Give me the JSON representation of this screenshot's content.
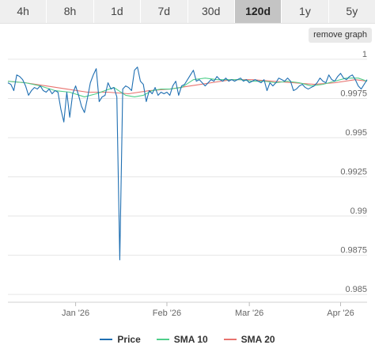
{
  "tabs": [
    {
      "label": "4h",
      "active": false
    },
    {
      "label": "8h",
      "active": false
    },
    {
      "label": "1d",
      "active": false
    },
    {
      "label": "7d",
      "active": false
    },
    {
      "label": "30d",
      "active": false
    },
    {
      "label": "120d",
      "active": true
    },
    {
      "label": "1y",
      "active": false
    },
    {
      "label": "5y",
      "active": false
    }
  ],
  "remove_button_label": "remove graph",
  "colors": {
    "price": "#1f6fb2",
    "sma10": "#4fcf8a",
    "sma20": "#e8736f",
    "grid": "#e6e6e6"
  },
  "chart_data": {
    "type": "line",
    "title": "",
    "xlabel": "",
    "ylabel": "",
    "x_start": "2025-12-09",
    "x_end": "2026-04-10",
    "ylim": [
      0.9845,
      1.0005
    ],
    "y_ticks": [
      {
        "value": 1.0,
        "label": "1"
      },
      {
        "value": 0.9975,
        "label": "0.9975"
      },
      {
        "value": 0.995,
        "label": "0.995"
      },
      {
        "value": 0.9925,
        "label": "0.9925"
      },
      {
        "value": 0.99,
        "label": "0.99"
      },
      {
        "value": 0.9875,
        "label": "0.9875"
      },
      {
        "value": 0.985,
        "label": "0.985"
      }
    ],
    "x_ticks": [
      {
        "date": "2026-01-01",
        "label": "Jan '26"
      },
      {
        "date": "2026-02-01",
        "label": "Feb '26"
      },
      {
        "date": "2026-03-01",
        "label": "Mar '26"
      },
      {
        "date": "2026-04-01",
        "label": "Apr '26"
      }
    ],
    "series": [
      {
        "name": "Price",
        "points": [
          [
            "2025-12-09",
            0.9985
          ],
          [
            "2025-12-10",
            0.9984
          ],
          [
            "2025-12-11",
            0.998
          ],
          [
            "2025-12-12",
            0.999
          ],
          [
            "2025-12-13",
            0.9989
          ],
          [
            "2025-12-14",
            0.9987
          ],
          [
            "2025-12-15",
            0.9983
          ],
          [
            "2025-12-16",
            0.9977
          ],
          [
            "2025-12-17",
            0.998
          ],
          [
            "2025-12-18",
            0.9982
          ],
          [
            "2025-12-19",
            0.9981
          ],
          [
            "2025-12-20",
            0.9983
          ],
          [
            "2025-12-21",
            0.998
          ],
          [
            "2025-12-22",
            0.9979
          ],
          [
            "2025-12-23",
            0.9981
          ],
          [
            "2025-12-24",
            0.9978
          ],
          [
            "2025-12-25",
            0.998
          ],
          [
            "2025-12-26",
            0.9979
          ],
          [
            "2025-12-27",
            0.9968
          ],
          [
            "2025-12-28",
            0.996
          ],
          [
            "2025-12-29",
            0.9979
          ],
          [
            "2025-12-30",
            0.9963
          ],
          [
            "2025-12-31",
            0.9978
          ],
          [
            "2026-01-01",
            0.9983
          ],
          [
            "2026-01-02",
            0.9977
          ],
          [
            "2026-01-03",
            0.997
          ],
          [
            "2026-01-04",
            0.9966
          ],
          [
            "2026-01-05",
            0.9975
          ],
          [
            "2026-01-06",
            0.9985
          ],
          [
            "2026-01-07",
            0.999
          ],
          [
            "2026-01-08",
            0.9994
          ],
          [
            "2026-01-09",
            0.9973
          ],
          [
            "2026-01-10",
            0.9976
          ],
          [
            "2026-01-11",
            0.9977
          ],
          [
            "2026-01-12",
            0.9985
          ],
          [
            "2026-01-13",
            0.9981
          ],
          [
            "2026-01-14",
            0.9982
          ],
          [
            "2026-01-15",
            0.9976
          ],
          [
            "2026-01-16",
            0.9872
          ],
          [
            "2026-01-17",
            0.9981
          ],
          [
            "2026-01-18",
            0.9983
          ],
          [
            "2026-01-19",
            0.9982
          ],
          [
            "2026-01-20",
            0.998
          ],
          [
            "2026-01-21",
            0.9993
          ],
          [
            "2026-01-22",
            0.9995
          ],
          [
            "2026-01-23",
            0.9986
          ],
          [
            "2026-01-24",
            0.9984
          ],
          [
            "2026-01-25",
            0.9973
          ],
          [
            "2026-01-26",
            0.998
          ],
          [
            "2026-01-27",
            0.9978
          ],
          [
            "2026-01-28",
            0.9982
          ],
          [
            "2026-01-29",
            0.9977
          ],
          [
            "2026-01-30",
            0.9979
          ],
          [
            "2026-01-31",
            0.9978
          ],
          [
            "2026-02-01",
            0.9979
          ],
          [
            "2026-02-02",
            0.9977
          ],
          [
            "2026-02-03",
            0.9983
          ],
          [
            "2026-02-04",
            0.9986
          ],
          [
            "2026-02-05",
            0.9977
          ],
          [
            "2026-02-06",
            0.9983
          ],
          [
            "2026-02-07",
            0.9984
          ],
          [
            "2026-02-08",
            0.9987
          ],
          [
            "2026-02-09",
            0.999
          ],
          [
            "2026-02-10",
            0.9993
          ],
          [
            "2026-02-11",
            0.9986
          ],
          [
            "2026-02-12",
            0.9987
          ],
          [
            "2026-02-13",
            0.9985
          ],
          [
            "2026-02-14",
            0.9983
          ],
          [
            "2026-02-15",
            0.9985
          ],
          [
            "2026-02-16",
            0.9987
          ],
          [
            "2026-02-17",
            0.9986
          ],
          [
            "2026-02-18",
            0.9989
          ],
          [
            "2026-02-19",
            0.9987
          ],
          [
            "2026-02-20",
            0.9986
          ],
          [
            "2026-02-21",
            0.9988
          ],
          [
            "2026-02-22",
            0.9986
          ],
          [
            "2026-02-23",
            0.9987
          ],
          [
            "2026-02-24",
            0.9986
          ],
          [
            "2026-02-25",
            0.9987
          ],
          [
            "2026-02-26",
            0.9988
          ],
          [
            "2026-02-27",
            0.9986
          ],
          [
            "2026-02-28",
            0.9987
          ],
          [
            "2026-03-01",
            0.9985
          ],
          [
            "2026-03-02",
            0.9986
          ],
          [
            "2026-03-03",
            0.9987
          ],
          [
            "2026-03-04",
            0.9986
          ],
          [
            "2026-03-05",
            0.9985
          ],
          [
            "2026-03-06",
            0.9987
          ],
          [
            "2026-03-07",
            0.998
          ],
          [
            "2026-03-08",
            0.9985
          ],
          [
            "2026-03-09",
            0.9983
          ],
          [
            "2026-03-10",
            0.9985
          ],
          [
            "2026-03-11",
            0.9988
          ],
          [
            "2026-03-12",
            0.9987
          ],
          [
            "2026-03-13",
            0.9986
          ],
          [
            "2026-03-14",
            0.9988
          ],
          [
            "2026-03-15",
            0.9986
          ],
          [
            "2026-03-16",
            0.998
          ],
          [
            "2026-03-17",
            0.9981
          ],
          [
            "2026-03-18",
            0.9983
          ],
          [
            "2026-03-19",
            0.9984
          ],
          [
            "2026-03-20",
            0.9982
          ],
          [
            "2026-03-21",
            0.9981
          ],
          [
            "2026-03-22",
            0.9982
          ],
          [
            "2026-03-23",
            0.9983
          ],
          [
            "2026-03-24",
            0.9985
          ],
          [
            "2026-03-25",
            0.9988
          ],
          [
            "2026-03-26",
            0.9986
          ],
          [
            "2026-03-27",
            0.9985
          ],
          [
            "2026-03-28",
            0.999
          ],
          [
            "2026-03-29",
            0.9987
          ],
          [
            "2026-03-30",
            0.9986
          ],
          [
            "2026-03-31",
            0.9989
          ],
          [
            "2026-04-01",
            0.9991
          ],
          [
            "2026-04-02",
            0.9988
          ],
          [
            "2026-04-03",
            0.9987
          ],
          [
            "2026-04-04",
            0.9989
          ],
          [
            "2026-04-05",
            0.999
          ],
          [
            "2026-04-06",
            0.9987
          ],
          [
            "2026-04-07",
            0.9983
          ],
          [
            "2026-04-08",
            0.9981
          ],
          [
            "2026-04-09",
            0.9984
          ],
          [
            "2026-04-10",
            0.9987
          ]
        ]
      },
      {
        "name": "SMA 10",
        "points": [
          [
            "2025-12-09",
            0.9986
          ],
          [
            "2025-12-15",
            0.9985
          ],
          [
            "2025-12-20",
            0.9983
          ],
          [
            "2025-12-25",
            0.998
          ],
          [
            "2025-12-30",
            0.9979
          ],
          [
            "2026-01-04",
            0.9976
          ],
          [
            "2026-01-08",
            0.9978
          ],
          [
            "2026-01-11",
            0.998
          ],
          [
            "2026-01-14",
            0.9982
          ],
          [
            "2026-01-18",
            0.9977
          ],
          [
            "2026-01-21",
            0.9976
          ],
          [
            "2026-01-24",
            0.9977
          ],
          [
            "2026-01-27",
            0.998
          ],
          [
            "2026-01-30",
            0.9981
          ],
          [
            "2026-02-02",
            0.9981
          ],
          [
            "2026-02-06",
            0.9982
          ],
          [
            "2026-02-10",
            0.9987
          ],
          [
            "2026-02-14",
            0.9988
          ],
          [
            "2026-02-18",
            0.9987
          ],
          [
            "2026-02-22",
            0.9987
          ],
          [
            "2026-02-26",
            0.9987
          ],
          [
            "2026-03-02",
            0.9986
          ],
          [
            "2026-03-06",
            0.9986
          ],
          [
            "2026-03-10",
            0.9985
          ],
          [
            "2026-03-14",
            0.9986
          ],
          [
            "2026-03-18",
            0.9985
          ],
          [
            "2026-03-22",
            0.9983
          ],
          [
            "2026-03-26",
            0.9984
          ],
          [
            "2026-03-30",
            0.9986
          ],
          [
            "2026-04-03",
            0.9988
          ],
          [
            "2026-04-07",
            0.9988
          ],
          [
            "2026-04-10",
            0.9986
          ]
        ]
      },
      {
        "name": "SMA 20",
        "points": [
          [
            "2025-12-09",
            0.9986
          ],
          [
            "2025-12-15",
            0.9985
          ],
          [
            "2025-12-22",
            0.9983
          ],
          [
            "2025-12-29",
            0.9981
          ],
          [
            "2026-01-05",
            0.9979
          ],
          [
            "2026-01-12",
            0.9979
          ],
          [
            "2026-01-19",
            0.9978
          ],
          [
            "2026-01-26",
            0.998
          ],
          [
            "2026-02-02",
            0.9981
          ],
          [
            "2026-02-09",
            0.9983
          ],
          [
            "2026-02-16",
            0.9985
          ],
          [
            "2026-02-23",
            0.9987
          ],
          [
            "2026-03-02",
            0.9987
          ],
          [
            "2026-03-09",
            0.9986
          ],
          [
            "2026-03-16",
            0.9985
          ],
          [
            "2026-03-23",
            0.9984
          ],
          [
            "2026-03-30",
            0.9985
          ],
          [
            "2026-04-06",
            0.9987
          ],
          [
            "2026-04-10",
            0.9986
          ]
        ]
      }
    ]
  }
}
